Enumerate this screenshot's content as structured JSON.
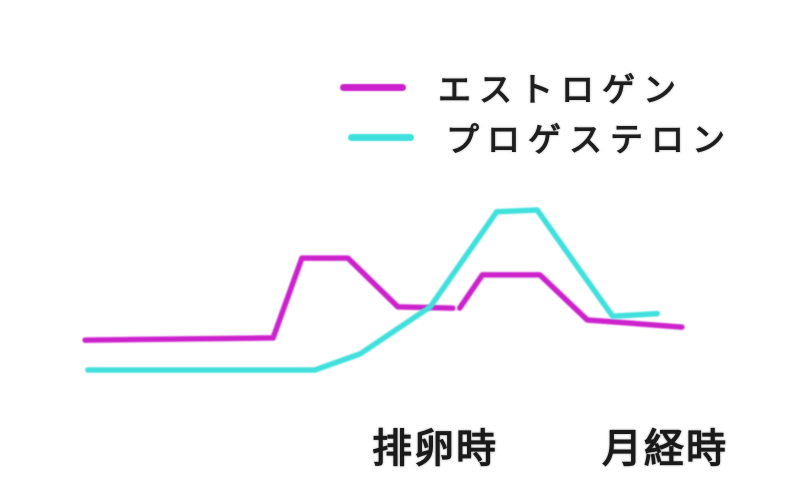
{
  "page": {
    "background": "#ffffff",
    "axis_color": "#909090",
    "text_color": "#1e1e1e"
  },
  "legend": {
    "items": [
      {
        "id": "estrogen",
        "label": "エストロゲン",
        "color": "#cc22cc"
      },
      {
        "id": "progesterone",
        "label": "プロゲステロン",
        "color": "#40e0dc"
      }
    ]
  },
  "chart_data": {
    "type": "line",
    "title": "",
    "description": "Qualitative female hormone level curves across the menstrual cycle; no numeric axes shown",
    "grid": false,
    "legend_position": "top-right",
    "x_axis": {
      "range": [
        0,
        100
      ],
      "labels": [
        {
          "id": "ovulation",
          "text": "排卵時",
          "x": 55
        },
        {
          "id": "menstruation",
          "text": "月経時",
          "x": 89
        }
      ]
    },
    "y_axis": {
      "range": [
        0,
        100
      ],
      "labels": []
    },
    "series": [
      {
        "id": "estrogen",
        "name": "エストロゲン",
        "color": "#cc22cc",
        "segments": [
          [
            [
              4.1,
              19.0
            ],
            [
              31.5,
              19.6
            ],
            [
              35.7,
              41.0
            ],
            [
              42.4,
              41.0
            ],
            [
              49.7,
              27.9
            ],
            [
              57.7,
              27.6
            ]
          ],
          [
            [
              58.7,
              27.6
            ],
            [
              62.0,
              36.5
            ],
            [
              70.4,
              36.5
            ],
            [
              77.3,
              24.4
            ],
            [
              79.6,
              24.1
            ],
            [
              91.1,
              22.5
            ]
          ]
        ]
      },
      {
        "id": "progesterone",
        "name": "プロゲステロン",
        "color": "#40e0dc",
        "segments": [
          [
            [
              4.5,
              11.0
            ],
            [
              37.6,
              11.0
            ],
            [
              44.2,
              15.3
            ],
            [
              54.4,
              27.9
            ],
            [
              64.1,
              53.4
            ],
            [
              70.0,
              53.9
            ],
            [
              76.2,
              37.8
            ],
            [
              81.0,
              25.4
            ],
            [
              87.5,
              26.1
            ]
          ]
        ]
      }
    ]
  }
}
